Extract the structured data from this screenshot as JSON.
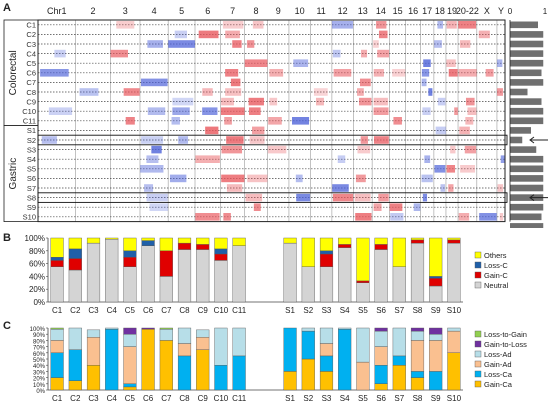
{
  "panel_labels": {
    "a": "A",
    "b": "B",
    "c": "C"
  },
  "heatmap": {
    "chromosomes": [
      "Chr1",
      "2",
      "3",
      "4",
      "5",
      "6",
      "7",
      "8",
      "9",
      "10",
      "11",
      "12",
      "13",
      "14",
      "15",
      "16",
      "17",
      "18",
      "19",
      "20-22",
      "X",
      "Y"
    ],
    "groups": [
      {
        "name": "Colorectal",
        "rows": [
          "C1",
          "C2",
          "C3",
          "C4",
          "C5",
          "C6",
          "C7",
          "C8",
          "C9",
          "C10",
          "C11"
        ]
      },
      {
        "name": "Gastric",
        "rows": [
          "S1",
          "S2",
          "S3",
          "S4",
          "S5",
          "S6",
          "S7",
          "S8",
          "S9",
          "S10"
        ]
      }
    ],
    "side_axis_labels": [
      "0",
      "1"
    ],
    "side_values": [
      0.8,
      0.95,
      0.95,
      0.95,
      0.95,
      0.9,
      0.95,
      0.5,
      0.9,
      0.95,
      0.95,
      0.6,
      0.35,
      0.75,
      0.95,
      0.95,
      0.95,
      0.95,
      0.95,
      0.95,
      0.9,
      0.95
    ],
    "arrows": [
      "S2",
      "S8"
    ],
    "colors": {
      "gain": "#e8545a",
      "loss": "#4a5fd8"
    }
  },
  "chart_data": [
    {
      "type": "bar",
      "title": "",
      "stacked": true,
      "ylim": [
        0,
        100
      ],
      "yticks": [
        "0%",
        "20%",
        "40%",
        "60%",
        "80%",
        "100%"
      ],
      "categories": [
        "C1",
        "C2",
        "C3",
        "C4",
        "C5",
        "C6",
        "C7",
        "C8",
        "C9",
        "C10",
        "C11",
        "S1",
        "S2",
        "S3",
        "S4",
        "S5",
        "S6",
        "S7",
        "S8",
        "S9",
        "S10"
      ],
      "series": [
        {
          "name": "Neutral",
          "color": "#d4d4d4",
          "values": [
            55,
            50,
            92,
            98,
            55,
            88,
            40,
            82,
            82,
            65,
            88,
            92,
            55,
            55,
            85,
            30,
            82,
            55,
            92,
            25,
            92
          ]
        },
        {
          "name": "Gain-C",
          "color": "#e00000",
          "values": [
            10,
            18,
            0,
            0,
            15,
            0,
            40,
            10,
            8,
            10,
            0,
            0,
            0,
            20,
            5,
            3,
            8,
            0,
            5,
            12,
            5
          ]
        },
        {
          "name": "Loss-C",
          "color": "#1f5fa8",
          "values": [
            5,
            15,
            0,
            0,
            10,
            8,
            0,
            0,
            0,
            8,
            0,
            0,
            0,
            5,
            0,
            0,
            0,
            0,
            0,
            3,
            0
          ]
        },
        {
          "name": "Others",
          "color": "#ffff00",
          "values": [
            30,
            17,
            8,
            2,
            20,
            4,
            20,
            8,
            10,
            17,
            12,
            8,
            45,
            20,
            10,
            67,
            10,
            45,
            3,
            60,
            3
          ]
        }
      ],
      "legend_position": "right"
    },
    {
      "type": "bar",
      "title": "",
      "stacked": true,
      "ylim": [
        0,
        100
      ],
      "yticks": [
        "0%",
        "10%",
        "20%",
        "30%",
        "40%",
        "50%",
        "60%",
        "70%",
        "80%",
        "90%",
        "100%"
      ],
      "categories": [
        "C1",
        "C2",
        "C3",
        "C4",
        "C5",
        "C6",
        "C7",
        "C8",
        "C9",
        "C10",
        "C11",
        "S1",
        "S2",
        "S3",
        "S4",
        "S5",
        "S6",
        "S7",
        "S8",
        "S9",
        "S10"
      ],
      "series": [
        {
          "name": "Gain-Ca",
          "color": "#ffc000",
          "values": [
            20,
            15,
            40,
            0,
            5,
            98,
            80,
            0,
            65,
            0,
            0,
            30,
            50,
            30,
            0,
            0,
            10,
            40,
            20,
            0,
            60
          ]
        },
        {
          "name": "Loss-Ca",
          "color": "#00b0f0",
          "values": [
            40,
            50,
            0,
            98,
            5,
            0,
            0,
            55,
            0,
            40,
            55,
            70,
            45,
            25,
            98,
            0,
            30,
            15,
            10,
            30,
            0
          ]
        },
        {
          "name": "Gain-Ad",
          "color": "#fac090",
          "values": [
            20,
            0,
            45,
            0,
            60,
            0,
            0,
            20,
            20,
            0,
            0,
            0,
            0,
            20,
            0,
            45,
            30,
            0,
            50,
            50,
            35
          ]
        },
        {
          "name": "Loss-Ad",
          "color": "#b7dee8",
          "values": [
            18,
            35,
            12,
            2,
            20,
            0,
            18,
            25,
            12,
            60,
            45,
            0,
            5,
            25,
            2,
            55,
            25,
            45,
            15,
            10,
            5
          ]
        },
        {
          "name": "Gain-to-Loss",
          "color": "#7030a0",
          "values": [
            0,
            0,
            0,
            0,
            10,
            2,
            0,
            0,
            0,
            0,
            0,
            0,
            0,
            0,
            0,
            0,
            5,
            0,
            5,
            10,
            0
          ]
        },
        {
          "name": "Loss-to-Gain",
          "color": "#92d050",
          "values": [
            2,
            0,
            0,
            0,
            0,
            0,
            2,
            0,
            0,
            0,
            0,
            0,
            0,
            0,
            0,
            0,
            0,
            0,
            0,
            0,
            0
          ]
        }
      ],
      "legend_position": "right"
    }
  ]
}
